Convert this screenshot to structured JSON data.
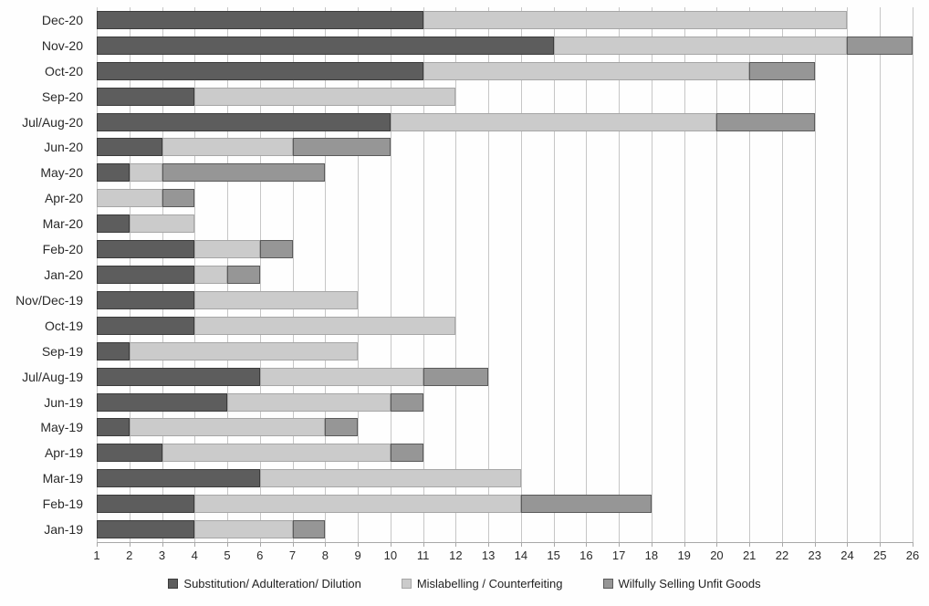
{
  "chart_data": {
    "type": "bar",
    "orientation": "horizontal",
    "stacked": true,
    "grid": true,
    "legend_position": "bottom",
    "categories": [
      "Dec-20",
      "Nov-20",
      "Oct-20",
      "Sep-20",
      "Jul/Aug-20",
      "Jun-20",
      "May-20",
      "Apr-20",
      "Mar-20",
      "Feb-20",
      "Jan-20",
      "Nov/Dec-19",
      "Oct-19",
      "Sep-19",
      "Jul/Aug-19",
      "Jun-19",
      "May-19",
      "Apr-19",
      "Mar-19",
      "Feb-19",
      "Jan-19"
    ],
    "series": [
      {
        "name": "Substitution/ Adulteration/ Dilution",
        "color": "#5d5d5d",
        "border_color": "#3b3b3b",
        "values": [
          11,
          15,
          11,
          4,
          10,
          3,
          2,
          0,
          2,
          4,
          4,
          4,
          4,
          2,
          6,
          5,
          2,
          3,
          6,
          4,
          4
        ]
      },
      {
        "name": "Mislabelling / Counterfeiting",
        "color": "#cbcbcb",
        "border_color": "#a6a6a6",
        "values": [
          13,
          9,
          10,
          8,
          10,
          4,
          1,
          3,
          2,
          2,
          1,
          5,
          8,
          7,
          5,
          5,
          6,
          7,
          8,
          10,
          3
        ]
      },
      {
        "name": "Wilfully Selling Unfit Goods",
        "color": "#969696",
        "border_color": "#5a5a5a",
        "values": [
          0,
          2,
          2,
          0,
          3,
          3,
          5,
          1,
          0,
          1,
          1,
          0,
          0,
          0,
          2,
          1,
          1,
          1,
          0,
          4,
          1
        ]
      }
    ],
    "x_axis": {
      "min": 1,
      "max": 26,
      "ticks": [
        1,
        2,
        3,
        4,
        5,
        6,
        7,
        8,
        9,
        10,
        11,
        12,
        13,
        14,
        15,
        16,
        17,
        18,
        19,
        20,
        21,
        22,
        23,
        24,
        25,
        26
      ]
    }
  },
  "colors": {
    "gridline": "#c6c6c6",
    "axis_line": "#a8a8a8",
    "text": "#2a2a2a",
    "background": "#fefefe"
  }
}
